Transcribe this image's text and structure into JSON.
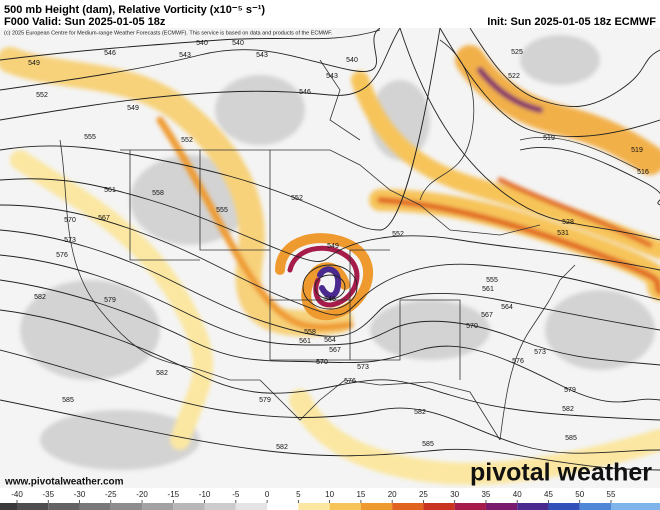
{
  "header": {
    "title": "500 mb Height (dam), Relative Vorticity (x10⁻⁵ s⁻¹)",
    "valid": "F000 Valid: Sun 2025-01-05 18z",
    "init": "Init: Sun 2025-01-05 18z ECMWF",
    "copyright": "(c) 2025 European Centre for Medium-range Weather Forecasts (ECMWF). This service is based on data and products of the ECMWF."
  },
  "map": {
    "contour_labels": [
      546,
      543,
      540,
      540,
      543,
      540,
      543,
      546,
      549,
      552,
      549,
      552,
      555,
      561,
      558,
      555,
      552,
      567,
      570,
      573,
      576,
      582,
      579,
      549,
      552,
      546,
      558,
      561,
      564,
      567,
      570,
      573,
      576,
      579,
      582,
      582,
      585,
      585,
      582,
      567,
      570,
      573,
      576,
      579,
      582,
      585,
      555,
      561,
      564,
      528,
      531,
      525,
      522,
      519,
      519,
      516
    ],
    "contour_color": "#222222"
  },
  "footer": {
    "website": "www.pivotalweather.com",
    "logo": "pivotal weather"
  },
  "colorbar": {
    "ticks": [
      -40,
      -35,
      -30,
      -25,
      -20,
      -15,
      -10,
      -5,
      0,
      5,
      10,
      15,
      20,
      25,
      30,
      35,
      40,
      45,
      50,
      55
    ],
    "colors": [
      "#3a3a3a",
      "#4e4e4e",
      "#636363",
      "#787878",
      "#8d8d8d",
      "#a2a2a2",
      "#b7b7b7",
      "#cccccc",
      "#e4e4e4",
      "#ffffff",
      "#fbe7a1",
      "#f7c45a",
      "#ef9a2e",
      "#e0641f",
      "#c8341e",
      "#a51c4a",
      "#7a1a6e",
      "#4a2a8e",
      "#3250b8",
      "#4f86d6",
      "#7fb4ea"
    ]
  }
}
